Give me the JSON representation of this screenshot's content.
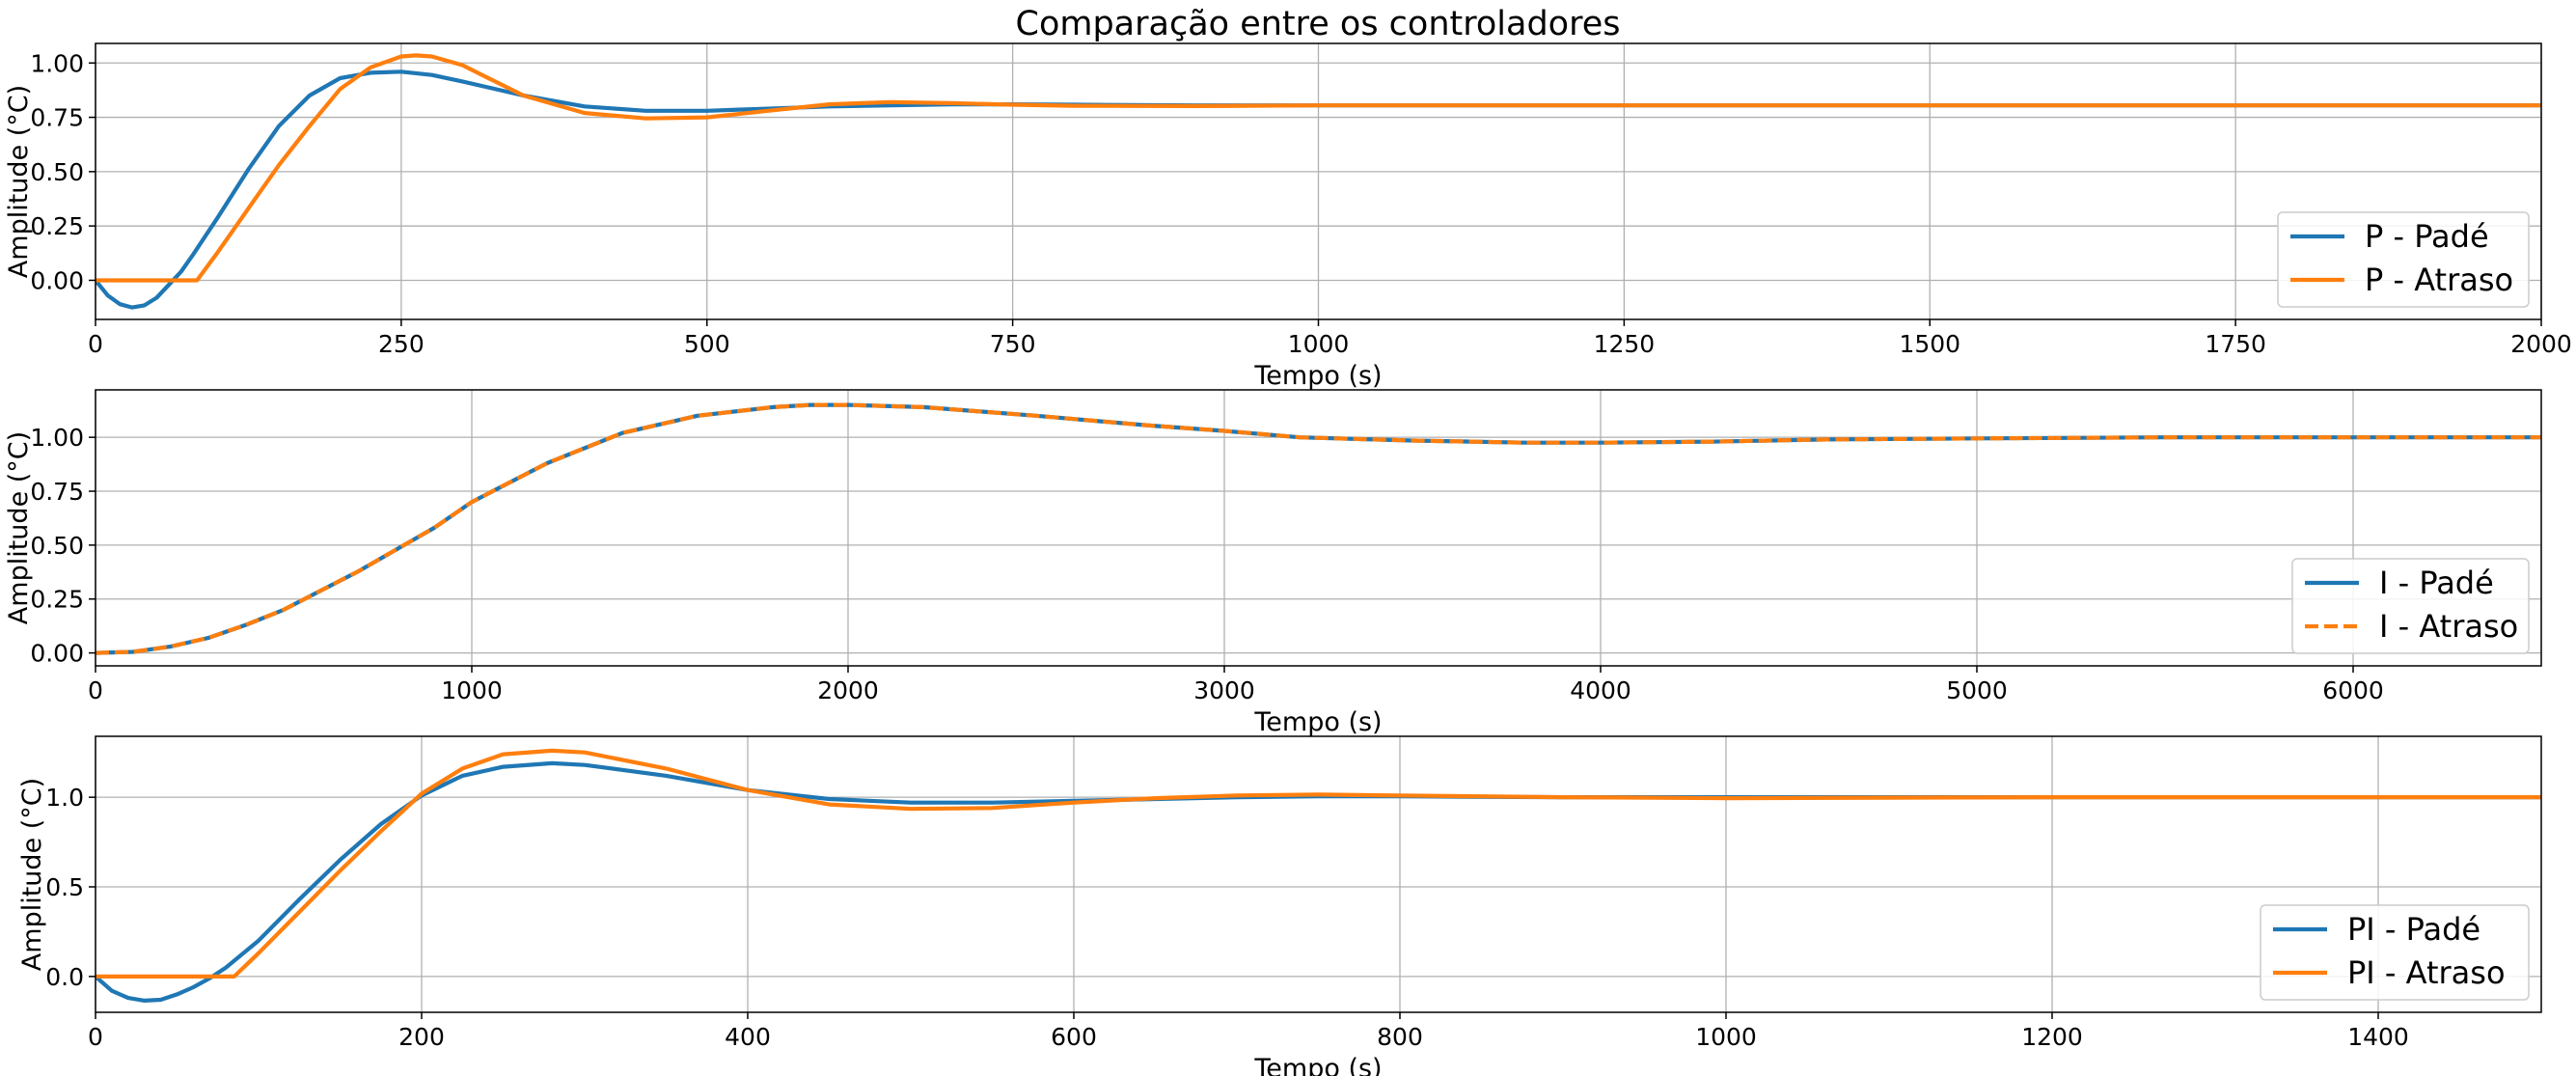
{
  "figure_title": "Comparação entre os controladores",
  "colors": {
    "blue": "#1f77b4",
    "orange": "#ff7f0e"
  },
  "chart_data": [
    {
      "type": "line",
      "xlabel": "Tempo (s)",
      "ylabel": "Amplitude (°C)",
      "xlim": [
        0,
        2000
      ],
      "ylim": [
        -0.18,
        1.09
      ],
      "xticks": [
        0,
        250,
        500,
        750,
        1000,
        1250,
        1500,
        1750,
        2000
      ],
      "xtick_labels": [
        "0",
        "250",
        "500",
        "750",
        "1000",
        "1250",
        "1500",
        "1750",
        "2000"
      ],
      "yticks": [
        0,
        0.25,
        0.5,
        0.75,
        1.0
      ],
      "ytick_labels": [
        "0.00",
        "0.25",
        "0.50",
        "0.75",
        "1.00"
      ],
      "grid": true,
      "legend_position": "lower-right",
      "series": [
        {
          "name": "P - Padé",
          "color": "#1f77b4",
          "dashed": false,
          "x": [
            0,
            10,
            20,
            30,
            40,
            50,
            60,
            70,
            80,
            100,
            125,
            150,
            175,
            200,
            225,
            250,
            275,
            300,
            350,
            400,
            450,
            500,
            550,
            600,
            650,
            700,
            750,
            800,
            900,
            1000,
            1250,
            1500,
            1750,
            2000
          ],
          "y": [
            0,
            -0.07,
            -0.11,
            -0.125,
            -0.115,
            -0.08,
            -0.02,
            0.04,
            0.12,
            0.29,
            0.51,
            0.71,
            0.85,
            0.93,
            0.955,
            0.96,
            0.945,
            0.915,
            0.85,
            0.8,
            0.78,
            0.78,
            0.79,
            0.8,
            0.805,
            0.81,
            0.81,
            0.808,
            0.805,
            0.805,
            0.805,
            0.805,
            0.805,
            0.805
          ]
        },
        {
          "name": "P - Atraso",
          "color": "#ff7f0e",
          "dashed": false,
          "x": [
            0,
            83,
            100,
            125,
            150,
            175,
            200,
            225,
            250,
            262,
            275,
            300,
            325,
            350,
            400,
            450,
            500,
            550,
            600,
            650,
            700,
            750,
            800,
            900,
            1000,
            1250,
            1500,
            1750,
            2000
          ],
          "y": [
            0,
            0,
            0.13,
            0.33,
            0.53,
            0.71,
            0.88,
            0.98,
            1.03,
            1.035,
            1.03,
            0.99,
            0.92,
            0.85,
            0.77,
            0.745,
            0.75,
            0.78,
            0.81,
            0.82,
            0.815,
            0.808,
            0.803,
            0.802,
            0.805,
            0.805,
            0.805,
            0.805,
            0.805
          ]
        }
      ]
    },
    {
      "type": "line",
      "xlabel": "Tempo (s)",
      "ylabel": "Amplitude (°C)",
      "xlim": [
        0,
        6500
      ],
      "ylim": [
        -0.06,
        1.22
      ],
      "xticks": [
        0,
        1000,
        2000,
        3000,
        4000,
        5000,
        6000
      ],
      "xtick_labels": [
        "0",
        "1000",
        "2000",
        "3000",
        "4000",
        "5000",
        "6000"
      ],
      "yticks": [
        0,
        0.25,
        0.5,
        0.75,
        1.0
      ],
      "ytick_labels": [
        "0.00",
        "0.25",
        "0.50",
        "0.75",
        "1.00"
      ],
      "grid": true,
      "legend_position": "lower-right",
      "series": [
        {
          "name": "I - Padé",
          "color": "#1f77b4",
          "dashed": false,
          "x": [
            0,
            100,
            200,
            300,
            400,
            500,
            600,
            700,
            800,
            900,
            1000,
            1200,
            1400,
            1600,
            1800,
            1900,
            2000,
            2200,
            2500,
            2800,
            3000,
            3200,
            3500,
            3800,
            4000,
            4300,
            4600,
            5000,
            5500,
            6000,
            6500
          ],
          "y": [
            0,
            0.005,
            0.03,
            0.07,
            0.13,
            0.2,
            0.29,
            0.38,
            0.48,
            0.58,
            0.7,
            0.88,
            1.02,
            1.1,
            1.14,
            1.15,
            1.15,
            1.14,
            1.1,
            1.055,
            1.03,
            1.0,
            0.985,
            0.975,
            0.975,
            0.98,
            0.99,
            0.995,
            1.0,
            1.0,
            1.0
          ]
        },
        {
          "name": "I - Atraso",
          "color": "#ff7f0e",
          "dashed": true,
          "x": [
            0,
            100,
            200,
            300,
            400,
            500,
            600,
            700,
            800,
            900,
            1000,
            1200,
            1400,
            1600,
            1800,
            1900,
            2000,
            2200,
            2500,
            2800,
            3000,
            3200,
            3500,
            3800,
            4000,
            4300,
            4600,
            5000,
            5500,
            6000,
            6500
          ],
          "y": [
            0,
            0.005,
            0.03,
            0.07,
            0.13,
            0.2,
            0.29,
            0.38,
            0.48,
            0.58,
            0.7,
            0.88,
            1.02,
            1.1,
            1.14,
            1.15,
            1.15,
            1.14,
            1.1,
            1.055,
            1.03,
            1.0,
            0.985,
            0.975,
            0.975,
            0.98,
            0.99,
            0.995,
            1.0,
            1.0,
            1.0
          ]
        }
      ]
    },
    {
      "type": "line",
      "xlabel": "Tempo (s)",
      "ylabel": "Amplitude (°C)",
      "xlim": [
        0,
        1500
      ],
      "ylim": [
        -0.2,
        1.34
      ],
      "xticks": [
        0,
        200,
        400,
        600,
        800,
        1000,
        1200,
        1400
      ],
      "xtick_labels": [
        "0",
        "200",
        "400",
        "600",
        "800",
        "1000",
        "1200",
        "1400"
      ],
      "yticks": [
        0,
        0.5,
        1.0
      ],
      "ytick_labels": [
        "0.0",
        "0.5",
        "1.0"
      ],
      "grid": true,
      "legend_position": "lower-right",
      "series": [
        {
          "name": "PI - Padé",
          "color": "#1f77b4",
          "dashed": false,
          "x": [
            0,
            10,
            20,
            30,
            40,
            50,
            60,
            70,
            80,
            100,
            125,
            150,
            175,
            200,
            225,
            250,
            280,
            300,
            350,
            400,
            450,
            500,
            550,
            600,
            650,
            700,
            750,
            800,
            900,
            1000,
            1200,
            1500
          ],
          "y": [
            0,
            -0.08,
            -0.12,
            -0.135,
            -0.13,
            -0.1,
            -0.06,
            -0.01,
            0.05,
            0.2,
            0.43,
            0.65,
            0.85,
            1.01,
            1.12,
            1.17,
            1.19,
            1.18,
            1.12,
            1.04,
            0.99,
            0.97,
            0.97,
            0.98,
            0.99,
            1.0,
            1.005,
            1.005,
            1.0,
            1.0,
            1.0,
            1.0
          ]
        },
        {
          "name": "PI - Atraso",
          "color": "#ff7f0e",
          "dashed": false,
          "x": [
            0,
            85,
            100,
            125,
            150,
            175,
            200,
            225,
            250,
            280,
            300,
            350,
            400,
            450,
            500,
            550,
            600,
            650,
            700,
            750,
            800,
            900,
            1000,
            1200,
            1500
          ],
          "y": [
            0,
            0,
            0.13,
            0.36,
            0.59,
            0.81,
            1.02,
            1.16,
            1.24,
            1.26,
            1.25,
            1.16,
            1.04,
            0.96,
            0.935,
            0.94,
            0.97,
            0.995,
            1.01,
            1.015,
            1.01,
            1.0,
            0.995,
            1.0,
            1.0
          ]
        }
      ]
    }
  ]
}
